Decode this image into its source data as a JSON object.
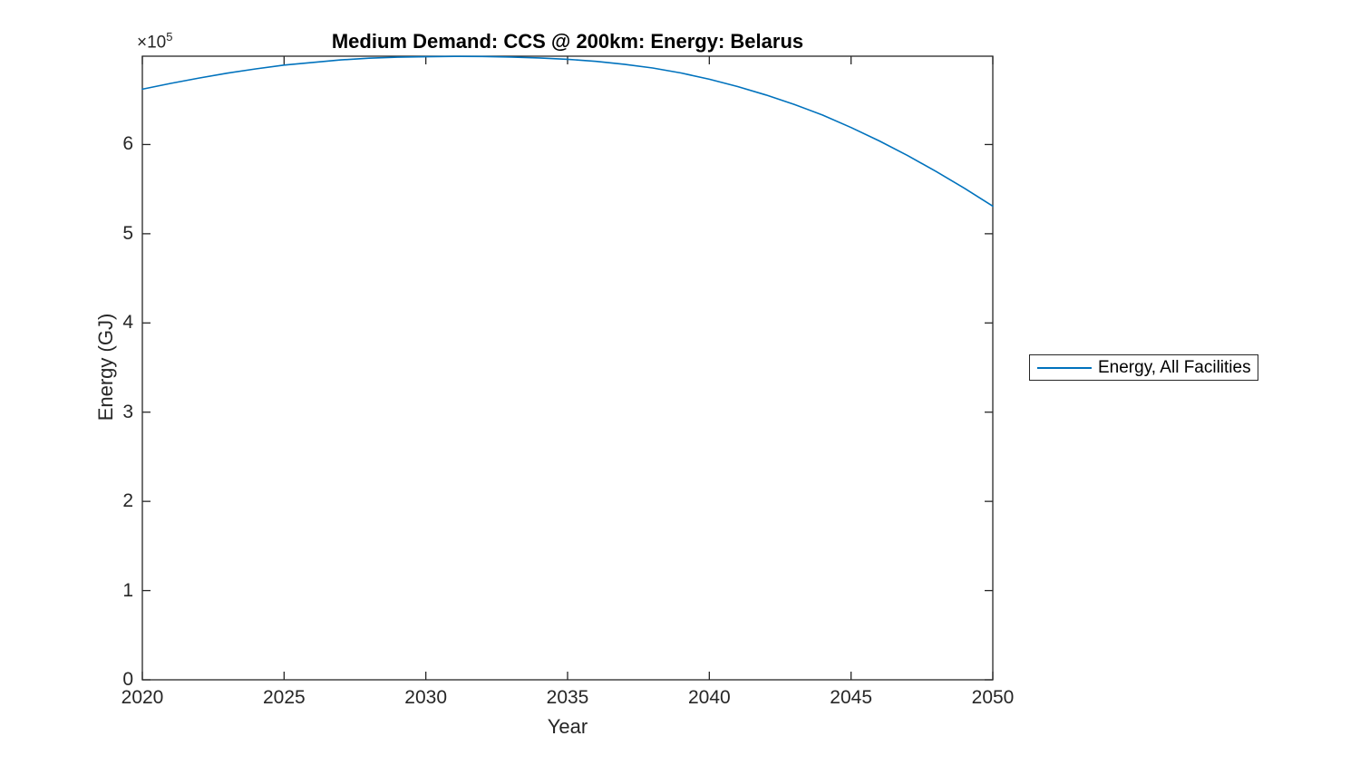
{
  "colors": {
    "background": "#ffffff",
    "axis": "#262626",
    "tick_text": "#262626",
    "title_text": "#000000",
    "line": "#0072BD"
  },
  "legend": {
    "label": "Energy, All Facilities"
  },
  "chart_data": {
    "type": "line",
    "title": "Medium Demand: CCS @ 200km: Energy: Belarus",
    "xlabel": "Year",
    "ylabel": "Energy (GJ)",
    "y_exponent": {
      "base": "×10",
      "power": "5"
    },
    "grid": false,
    "legend_position": "right-outside",
    "xlim": [
      2020,
      2050
    ],
    "ylim": [
      0,
      699000
    ],
    "x_ticks": [
      2020,
      2025,
      2030,
      2035,
      2040,
      2045,
      2050
    ],
    "y_ticks": [
      0,
      100000,
      200000,
      300000,
      400000,
      500000,
      600000
    ],
    "y_tick_labels": [
      "0",
      "1",
      "2",
      "3",
      "4",
      "5",
      "6"
    ],
    "x": [
      2020,
      2021,
      2022,
      2023,
      2024,
      2025,
      2026,
      2027,
      2028,
      2029,
      2030,
      2031,
      2032,
      2033,
      2034,
      2035,
      2036,
      2037,
      2038,
      2039,
      2040,
      2041,
      2042,
      2043,
      2044,
      2045,
      2046,
      2047,
      2048,
      2049,
      2050
    ],
    "series": [
      {
        "name": "Energy, All Facilities",
        "color": "#0072BD",
        "values": [
          662000,
          668500,
          674500,
          680000,
          684800,
          689000,
          692000,
          694800,
          696800,
          697900,
          698400,
          698800,
          698700,
          698100,
          697100,
          695500,
          693200,
          690000,
          685800,
          680200,
          673200,
          665000,
          655500,
          645000,
          633000,
          619000,
          604000,
          587500,
          569800,
          551000,
          531000
        ]
      }
    ]
  }
}
